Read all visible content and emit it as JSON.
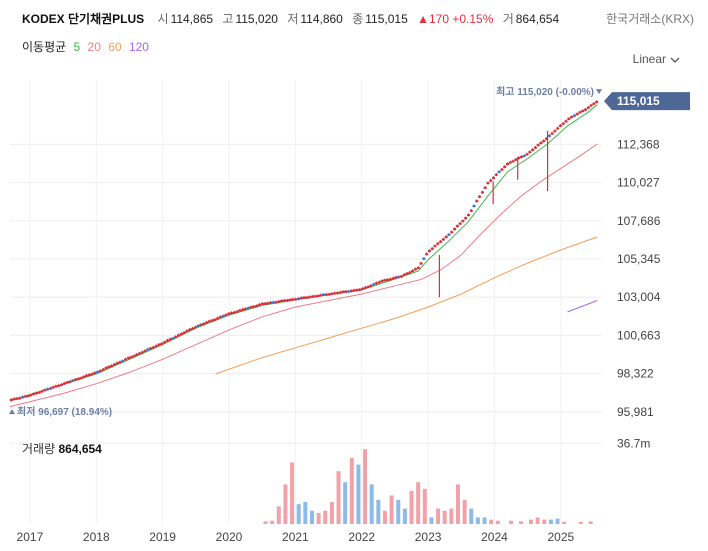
{
  "header": {
    "title": "KODEX 단기채권PLUS",
    "open_label": "시",
    "open": "114,865",
    "high_label": "고",
    "high": "115,020",
    "low_label": "저",
    "low": "114,860",
    "close_label": "종",
    "close": "115,015",
    "change": "▲170 +0.15%",
    "volume_label": "거",
    "volume": "864,654",
    "exchange": "한국거래소(KRX)"
  },
  "ma_legend": {
    "label": "이동평균",
    "periods": [
      {
        "value": "5",
        "color": "#3cb84a"
      },
      {
        "value": "20",
        "color": "#f07b86"
      },
      {
        "value": "60",
        "color": "#f4a05a"
      },
      {
        "value": "120",
        "color": "#a36ae0"
      }
    ]
  },
  "scale_button": "Linear",
  "chart_data": {
    "type": "candlestick",
    "y_ticks": [
      "112,368",
      "110,027",
      "107,686",
      "105,345",
      "103,004",
      "100,663",
      "98,322",
      "95,981"
    ],
    "y_tick_values": [
      112368,
      110027,
      107686,
      105345,
      103004,
      100663,
      98322,
      95981
    ],
    "ylim": [
      95600,
      115700
    ],
    "x_ticks": [
      "2017",
      "2018",
      "2019",
      "2020",
      "2021",
      "2022",
      "2023",
      "2024",
      "2025"
    ],
    "x_tick_values": [
      2017,
      2018,
      2019,
      2020,
      2021,
      2022,
      2023,
      2024,
      2025
    ],
    "xlim": [
      2016.7,
      2025.62
    ],
    "last_price": 115015,
    "last_price_label": "115,015",
    "max_label": "최고 115,020 (-0.00%)",
    "max_value": 115020,
    "min_label": "최저 96,697 (18.94%)",
    "min_value": 96697,
    "price_path": [
      [
        2016.7,
        96700
      ],
      [
        2017.0,
        97000
      ],
      [
        2017.5,
        97700
      ],
      [
        2018.0,
        98400
      ],
      [
        2018.5,
        99300
      ],
      [
        2019.0,
        100200
      ],
      [
        2019.5,
        101200
      ],
      [
        2020.0,
        102000
      ],
      [
        2020.5,
        102600
      ],
      [
        2021.0,
        102900
      ],
      [
        2021.5,
        103200
      ],
      [
        2022.0,
        103500
      ],
      [
        2022.3,
        104000
      ],
      [
        2022.6,
        104300
      ],
      [
        2022.85,
        104800
      ],
      [
        2023.0,
        105800
      ],
      [
        2023.3,
        106800
      ],
      [
        2023.6,
        108000
      ],
      [
        2023.9,
        110000
      ],
      [
        2024.2,
        111200
      ],
      [
        2024.5,
        111800
      ],
      [
        2024.8,
        112800
      ],
      [
        2025.1,
        113900
      ],
      [
        2025.4,
        114600
      ],
      [
        2025.55,
        115015
      ]
    ],
    "spikes": [
      {
        "x": 2023.17,
        "low": 103000,
        "high": 105600
      },
      {
        "x": 2024.8,
        "low": 109500,
        "high": 113200
      },
      {
        "x": 2024.35,
        "low": 110200,
        "high": 111600
      },
      {
        "x": 2023.98,
        "low": 108700,
        "high": 110100
      }
    ],
    "ma_lines": [
      {
        "name": "5",
        "color": "#3cb84a",
        "points": [
          [
            2016.7,
            96650
          ],
          [
            2017.5,
            97650
          ],
          [
            2018.0,
            98300
          ],
          [
            2018.5,
            99200
          ],
          [
            2019.0,
            100100
          ],
          [
            2019.5,
            101100
          ],
          [
            2020.0,
            101900
          ],
          [
            2020.5,
            102500
          ],
          [
            2021.0,
            102850
          ],
          [
            2021.5,
            103150
          ],
          [
            2022.0,
            103450
          ],
          [
            2022.6,
            104250
          ],
          [
            2022.85,
            104600
          ],
          [
            2023.0,
            105300
          ],
          [
            2023.3,
            106400
          ],
          [
            2023.6,
            107600
          ],
          [
            2023.9,
            109200
          ],
          [
            2024.2,
            110700
          ],
          [
            2024.5,
            111500
          ],
          [
            2024.8,
            112400
          ],
          [
            2025.1,
            113500
          ],
          [
            2025.4,
            114300
          ],
          [
            2025.55,
            114800
          ]
        ]
      },
      {
        "name": "20",
        "color": "#f07b86",
        "points": [
          [
            2016.7,
            96300
          ],
          [
            2017.5,
            97100
          ],
          [
            2018.0,
            97700
          ],
          [
            2018.5,
            98400
          ],
          [
            2019.0,
            99200
          ],
          [
            2019.5,
            100100
          ],
          [
            2020.0,
            101000
          ],
          [
            2020.5,
            101800
          ],
          [
            2021.0,
            102400
          ],
          [
            2021.5,
            102800
          ],
          [
            2022.0,
            103200
          ],
          [
            2022.5,
            103700
          ],
          [
            2022.9,
            104100
          ],
          [
            2023.2,
            104700
          ],
          [
            2023.5,
            105600
          ],
          [
            2023.8,
            106900
          ],
          [
            2024.1,
            108100
          ],
          [
            2024.4,
            109200
          ],
          [
            2024.7,
            110100
          ],
          [
            2025.0,
            110900
          ],
          [
            2025.3,
            111700
          ],
          [
            2025.55,
            112400
          ]
        ]
      },
      {
        "name": "60",
        "color": "#f4a05a",
        "points": [
          [
            2019.8,
            98300
          ],
          [
            2020.5,
            99300
          ],
          [
            2021.0,
            99900
          ],
          [
            2021.5,
            100500
          ],
          [
            2022.0,
            101100
          ],
          [
            2022.5,
            101700
          ],
          [
            2023.0,
            102400
          ],
          [
            2023.5,
            103200
          ],
          [
            2024.0,
            104200
          ],
          [
            2024.5,
            105100
          ],
          [
            2025.0,
            105900
          ],
          [
            2025.55,
            106700
          ]
        ]
      },
      {
        "name": "120",
        "color": "#a36ae0",
        "points": [
          [
            2025.1,
            102100
          ],
          [
            2025.55,
            102800
          ]
        ]
      }
    ],
    "volume": {
      "label": "거래량",
      "value": "864,654",
      "tick_label": "36.7m",
      "tick_value": 36.7,
      "unit": "m",
      "ylim": [
        0,
        40
      ],
      "bars": [
        [
          2020.55,
          1.2,
          "up"
        ],
        [
          2020.65,
          1.5,
          "up"
        ],
        [
          2020.75,
          8,
          "up"
        ],
        [
          2020.85,
          18,
          "up"
        ],
        [
          2020.95,
          28,
          "up"
        ],
        [
          2021.05,
          9,
          "down"
        ],
        [
          2021.15,
          10,
          "down"
        ],
        [
          2021.25,
          6,
          "down"
        ],
        [
          2021.35,
          5,
          "up"
        ],
        [
          2021.45,
          6,
          "up"
        ],
        [
          2021.55,
          10,
          "up"
        ],
        [
          2021.65,
          24,
          "up"
        ],
        [
          2021.75,
          19,
          "down"
        ],
        [
          2021.85,
          30,
          "up"
        ],
        [
          2021.95,
          27,
          "down"
        ],
        [
          2022.05,
          34,
          "up"
        ],
        [
          2022.15,
          18,
          "down"
        ],
        [
          2022.25,
          11,
          "down"
        ],
        [
          2022.35,
          6,
          "up"
        ],
        [
          2022.45,
          13,
          "up"
        ],
        [
          2022.55,
          11,
          "down"
        ],
        [
          2022.65,
          7,
          "down"
        ],
        [
          2022.75,
          15,
          "up"
        ],
        [
          2022.85,
          19,
          "up"
        ],
        [
          2022.95,
          16,
          "up"
        ],
        [
          2023.05,
          3,
          "down"
        ],
        [
          2023.15,
          7,
          "up"
        ],
        [
          2023.25,
          6,
          "up"
        ],
        [
          2023.35,
          7,
          "up"
        ],
        [
          2023.45,
          18,
          "up"
        ],
        [
          2023.55,
          11,
          "up"
        ],
        [
          2023.65,
          7,
          "down"
        ],
        [
          2023.75,
          3,
          "down"
        ],
        [
          2023.85,
          3,
          "down"
        ],
        [
          2023.95,
          2,
          "up"
        ],
        [
          2024.05,
          1.5,
          "up"
        ],
        [
          2024.25,
          1.5,
          "up"
        ],
        [
          2024.4,
          1.2,
          "up"
        ],
        [
          2024.55,
          2,
          "up"
        ],
        [
          2024.65,
          3,
          "up"
        ],
        [
          2024.75,
          2,
          "up"
        ],
        [
          2024.85,
          2,
          "down"
        ],
        [
          2024.95,
          2.5,
          "down"
        ],
        [
          2025.05,
          1,
          "up"
        ],
        [
          2025.3,
          1,
          "up"
        ],
        [
          2025.45,
          1.2,
          "up"
        ]
      ]
    }
  }
}
